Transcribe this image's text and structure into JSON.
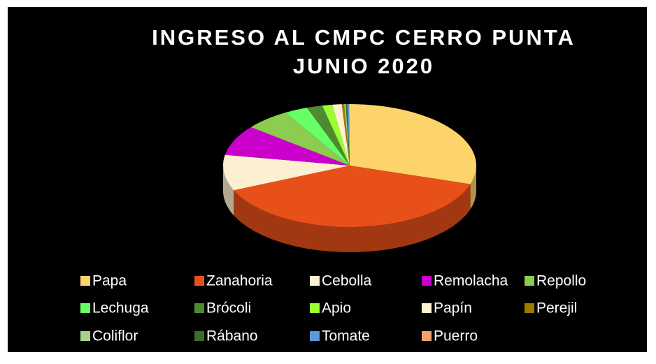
{
  "chart_data": {
    "type": "pie",
    "three_d": true,
    "title": [
      "INGRESO AL CMPC CERRO PUNTA",
      "JUNIO 2020"
    ],
    "categories": [
      "Papa",
      "Zanahoria",
      "Cebolla",
      "Remolacha",
      "Repollo",
      "Lechuga",
      "Brócoli",
      "Apio",
      "Papín",
      "Perejil",
      "Coliflor",
      "Rábano",
      "Tomate",
      "Puerro"
    ],
    "values": [
      30,
      38.7,
      9.4,
      8,
      5.8,
      3,
      2,
      1.3,
      1.2,
      0.3,
      0.2,
      0.2,
      0.2,
      0.1
    ],
    "colors": [
      "#fdd46a",
      "#e8501a",
      "#fdf0d0",
      "#cc00cc",
      "#8ccc4e",
      "#66ff66",
      "#4e8a30",
      "#99ff33",
      "#fff2cc",
      "#9c7a00",
      "#a9d18e",
      "#3b6e2a",
      "#5b9bd5",
      "#f4a070"
    ],
    "legend": "bottom"
  }
}
